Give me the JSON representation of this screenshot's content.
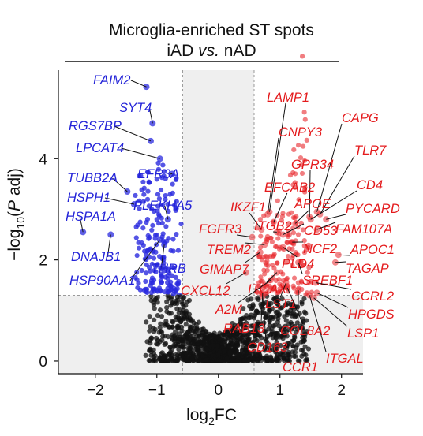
{
  "chart_data": {
    "type": "scatter",
    "title": "Microglia-enriched ST spots",
    "subtitle": "iAD vs. nAD",
    "xlabel": "log2FC",
    "ylabel": "−log10(P adj)",
    "xlim": [
      -2.6,
      2.35
    ],
    "ylim": [
      -0.25,
      5.75
    ],
    "xticks": [
      -2,
      -1,
      0,
      1,
      2
    ],
    "yticks": [
      0,
      2,
      4
    ],
    "thresholds": {
      "log2fc": [
        -0.58,
        0.58
      ],
      "neg_log10_padj": 1.3
    },
    "colors": {
      "down": "#2b2bdf",
      "up": "#e8262b",
      "ns": "#111111",
      "shade": "#efefef"
    },
    "labeled_genes": [
      {
        "gene": "FAIM2",
        "x": -1.17,
        "y": 5.42,
        "direction": "down"
      },
      {
        "gene": "SYT4",
        "x": -1.07,
        "y": 4.7,
        "direction": "down"
      },
      {
        "gene": "RGS7BP",
        "x": -1.1,
        "y": 4.35,
        "direction": "down"
      },
      {
        "gene": "LPCAT4",
        "x": -0.95,
        "y": 4.0,
        "direction": "down"
      },
      {
        "gene": "EFR3A",
        "x": -0.75,
        "y": 3.7,
        "direction": "down"
      },
      {
        "gene": "TUBB2A",
        "x": -1.48,
        "y": 3.35,
        "direction": "down"
      },
      {
        "gene": "HSPH1",
        "x": -1.37,
        "y": 3.1,
        "direction": "down"
      },
      {
        "gene": "PLEKHA5",
        "x": -0.82,
        "y": 2.8,
        "direction": "down"
      },
      {
        "gene": "HSPA1A",
        "x": -2.2,
        "y": 2.55,
        "direction": "down"
      },
      {
        "gene": "DNAJB1",
        "x": -1.75,
        "y": 2.5,
        "direction": "down"
      },
      {
        "gene": "HSP90AA1",
        "x": -0.95,
        "y": 2.4,
        "direction": "down"
      },
      {
        "gene": "THRB",
        "x": -0.88,
        "y": 2.3,
        "direction": "down"
      },
      {
        "gene": "LAMP1",
        "x": 0.83,
        "y": 2.95,
        "direction": "up"
      },
      {
        "gene": "CAPG",
        "x": 1.6,
        "y": 2.95,
        "direction": "up"
      },
      {
        "gene": "CNPY3",
        "x": 0.8,
        "y": 2.9,
        "direction": "up"
      },
      {
        "gene": "TLR7",
        "x": 1.65,
        "y": 2.9,
        "direction": "up"
      },
      {
        "gene": "GPR34",
        "x": 1.48,
        "y": 2.85,
        "direction": "up"
      },
      {
        "gene": "EFCAB2",
        "x": 0.9,
        "y": 2.75,
        "direction": "up"
      },
      {
        "gene": "CD4",
        "x": 1.5,
        "y": 2.8,
        "direction": "up"
      },
      {
        "gene": "APOE",
        "x": 1.25,
        "y": 2.72,
        "direction": "up"
      },
      {
        "gene": "IKZF1",
        "x": 0.7,
        "y": 2.6,
        "direction": "up"
      },
      {
        "gene": "PYCARD",
        "x": 1.75,
        "y": 2.8,
        "direction": "up"
      },
      {
        "gene": "FGFR3",
        "x": 0.55,
        "y": 2.45,
        "direction": "up"
      },
      {
        "gene": "ITGB2",
        "x": 0.95,
        "y": 2.55,
        "direction": "up"
      },
      {
        "gene": "CD53",
        "x": 1.05,
        "y": 2.5,
        "direction": "up"
      },
      {
        "gene": "FAM107A",
        "x": 1.6,
        "y": 2.6,
        "direction": "up"
      },
      {
        "gene": "TREM2",
        "x": 0.75,
        "y": 2.3,
        "direction": "up"
      },
      {
        "gene": "NCF2",
        "x": 1.2,
        "y": 2.35,
        "direction": "up"
      },
      {
        "gene": "APOC1",
        "x": 1.95,
        "y": 2.1,
        "direction": "up"
      },
      {
        "gene": "PLD4",
        "x": 1.05,
        "y": 2.25,
        "direction": "up"
      },
      {
        "gene": "GIMAP7",
        "x": 0.68,
        "y": 2.15,
        "direction": "up"
      },
      {
        "gene": "TAGAP",
        "x": 1.9,
        "y": 1.95,
        "direction": "up"
      },
      {
        "gene": "SREBF1",
        "x": 1.3,
        "y": 1.95,
        "direction": "up"
      },
      {
        "gene": "CXCL12",
        "x": 0.45,
        "y": 1.75,
        "direction": "up"
      },
      {
        "gene": "ITGAX",
        "x": 0.95,
        "y": 1.75,
        "direction": "up"
      },
      {
        "gene": "CCRL2",
        "x": 1.58,
        "y": 1.55,
        "direction": "up"
      },
      {
        "gene": "A2M",
        "x": 0.85,
        "y": 1.6,
        "direction": "up"
      },
      {
        "gene": "LST1",
        "x": 1.1,
        "y": 1.55,
        "direction": "up"
      },
      {
        "gene": "HPGDS",
        "x": 1.6,
        "y": 1.35,
        "direction": "up"
      },
      {
        "gene": "RAB13",
        "x": 0.72,
        "y": 1.35,
        "direction": "up"
      },
      {
        "gene": "COL8A2",
        "x": 1.12,
        "y": 1.45,
        "direction": "up"
      },
      {
        "gene": "LSP1",
        "x": 1.55,
        "y": 1.25,
        "direction": "up"
      },
      {
        "gene": "CD163",
        "x": 0.72,
        "y": 1.28,
        "direction": "up"
      },
      {
        "gene": "CCR1",
        "x": 1.3,
        "y": 1.4,
        "direction": "up"
      },
      {
        "gene": "ITGAL",
        "x": 1.48,
        "y": 1.3,
        "direction": "up"
      }
    ]
  }
}
